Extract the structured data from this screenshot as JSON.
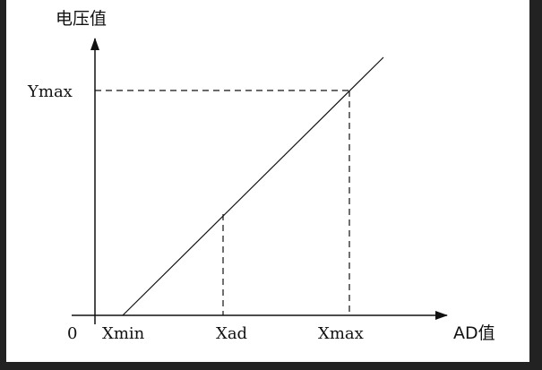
{
  "labels": {
    "y_axis": "电压值",
    "x_axis": "AD值",
    "origin": "0",
    "ymax": "Ymax",
    "xmin": "Xmin",
    "xad": "Xad",
    "xmax": "Xmax"
  },
  "colors": {
    "background": "#222222",
    "panel": "#ffffff",
    "ink": "#111111"
  }
}
